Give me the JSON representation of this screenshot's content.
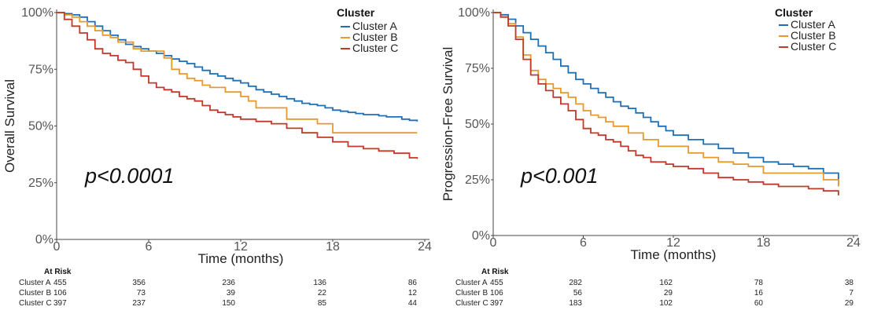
{
  "colors": {
    "A": "#1f6fb5",
    "B": "#e69a2e",
    "C": "#c0392b",
    "axis": "#444444"
  },
  "chart_data": [
    {
      "type": "line",
      "step": true,
      "ylabel": "Overall Survival",
      "xlabel": "Time (months)",
      "xlim": [
        0,
        24
      ],
      "ylim": [
        0,
        100
      ],
      "xticks": [
        "0",
        "6",
        "12",
        "18",
        "24"
      ],
      "xtick_values": [
        0,
        6,
        12,
        18,
        24
      ],
      "yticks": [
        "0%",
        "25%",
        "50%",
        "75%",
        "100%"
      ],
      "ytick_values": [
        0,
        25,
        50,
        75,
        100
      ],
      "legend_title": "Cluster",
      "legend_position": "top-right",
      "annotation": "p<0.0001",
      "series": [
        {
          "name": "Cluster A",
          "key": "A",
          "x": [
            0,
            0.5,
            1,
            1.5,
            2,
            2.5,
            3,
            3.5,
            4,
            4.5,
            5,
            5.5,
            6,
            6.5,
            7,
            7.5,
            8,
            8.5,
            9,
            9.5,
            10,
            10.5,
            11,
            11.5,
            12,
            12.5,
            13,
            13.5,
            14,
            14.5,
            15,
            15.5,
            16,
            16.5,
            17,
            17.5,
            18,
            18.5,
            19,
            19.5,
            20,
            20.5,
            21,
            21.5,
            22,
            22.5,
            23,
            23.5
          ],
          "y": [
            100,
            99.5,
            99,
            98,
            96,
            94,
            92,
            90,
            88,
            86,
            85,
            84,
            83,
            82,
            81,
            79.5,
            78.5,
            77.5,
            76,
            74.5,
            73,
            72,
            71,
            70,
            69,
            67.5,
            66,
            65,
            64,
            63,
            62,
            61,
            60,
            59.5,
            59,
            58,
            57,
            56.5,
            56,
            55.5,
            55,
            55,
            54.5,
            54,
            54,
            53,
            52.5,
            52
          ]
        },
        {
          "name": "Cluster B",
          "key": "B",
          "x": [
            0,
            0.5,
            1,
            1.5,
            2,
            2.5,
            3,
            3.5,
            4,
            5,
            5.5,
            7,
            7.5,
            8,
            8.5,
            9,
            9.5,
            10,
            11,
            12,
            12.5,
            13,
            15,
            17,
            18,
            19,
            20,
            21,
            22,
            23.5
          ],
          "y": [
            100,
            99,
            98,
            96,
            94,
            92,
            90,
            89,
            87,
            84,
            83,
            80,
            75,
            73,
            71,
            70,
            68,
            67,
            65,
            63,
            61,
            58,
            53,
            51,
            47,
            47,
            47,
            47,
            47,
            47
          ]
        },
        {
          "name": "Cluster C",
          "key": "C",
          "x": [
            0,
            0.5,
            1,
            1.5,
            2,
            2.5,
            3,
            3.5,
            4,
            4.5,
            5,
            5.5,
            6,
            6.5,
            7,
            7.5,
            8,
            8.5,
            9,
            9.5,
            10,
            10.5,
            11,
            11.5,
            12,
            13,
            14,
            15,
            16,
            17,
            18,
            19,
            20,
            21,
            22,
            23,
            23.5
          ],
          "y": [
            100,
            97,
            94,
            91,
            88,
            84,
            82,
            81,
            79,
            78,
            75,
            72,
            69,
            67,
            66,
            65,
            63,
            62,
            61,
            59,
            57,
            56,
            55,
            54,
            53,
            52,
            51,
            49,
            47,
            45,
            43,
            41,
            40,
            39,
            38,
            36,
            35.5
          ]
        }
      ],
      "at_risk": {
        "title": "At Risk",
        "rows": [
          {
            "label": "Cluster A",
            "values": [
              "455",
              "356",
              "236",
              "136",
              "86"
            ]
          },
          {
            "label": "Cluster B",
            "values": [
              "106",
              "73",
              "39",
              "22",
              "12"
            ]
          },
          {
            "label": "Cluster C",
            "values": [
              "397",
              "237",
              "150",
              "85",
              "44"
            ]
          }
        ]
      }
    },
    {
      "type": "line",
      "step": true,
      "ylabel": "Progression-Free Survival",
      "xlabel": "Time (months)",
      "xlim": [
        0,
        24
      ],
      "ylim": [
        0,
        100
      ],
      "xticks": [
        "0",
        "6",
        "12",
        "18",
        "24"
      ],
      "xtick_values": [
        0,
        6,
        12,
        18,
        24
      ],
      "yticks": [
        "0%",
        "25%",
        "50%",
        "75%",
        "100%"
      ],
      "ytick_values": [
        0,
        25,
        50,
        75,
        100
      ],
      "legend_title": "Cluster",
      "legend_position": "top-right",
      "annotation": "p<0.001",
      "series": [
        {
          "name": "Cluster A",
          "key": "A",
          "x": [
            0,
            0.5,
            1,
            1.5,
            2,
            2.5,
            3,
            3.5,
            4,
            4.5,
            5,
            5.5,
            6,
            6.5,
            7,
            7.5,
            8,
            8.5,
            9,
            9.5,
            10,
            10.5,
            11,
            11.5,
            12,
            13,
            14,
            15,
            16,
            17,
            18,
            19,
            20,
            21,
            22,
            23
          ],
          "y": [
            100,
            99,
            97,
            94,
            91,
            88,
            85,
            82,
            79,
            76,
            73,
            70,
            68,
            66,
            64,
            62,
            60,
            58,
            57,
            55,
            53,
            51,
            49,
            47,
            45,
            43,
            41,
            39,
            37,
            35,
            33,
            32,
            31,
            30,
            28,
            23
          ]
        },
        {
          "name": "Cluster B",
          "key": "B",
          "x": [
            0,
            0.5,
            1,
            1.5,
            2,
            2.5,
            3,
            3.5,
            4,
            4.5,
            5,
            5.5,
            6,
            6.5,
            7,
            7.5,
            8,
            9,
            10,
            11,
            12,
            13,
            14,
            15,
            16,
            17,
            18,
            19,
            20,
            21,
            22,
            23
          ],
          "y": [
            100,
            98,
            95,
            89,
            81,
            74,
            70,
            68,
            66,
            64,
            62,
            59,
            56,
            54,
            53,
            51,
            49,
            46,
            43,
            40,
            40,
            37,
            35,
            33,
            32,
            31,
            28,
            28,
            28,
            28,
            25,
            22
          ]
        },
        {
          "name": "Cluster C",
          "key": "C",
          "x": [
            0,
            0.5,
            1,
            1.5,
            2,
            2.5,
            3,
            3.5,
            4,
            4.5,
            5,
            5.5,
            6,
            6.5,
            7,
            7.5,
            8,
            8.5,
            9,
            9.5,
            10,
            10.5,
            11,
            11.5,
            12,
            13,
            14,
            15,
            16,
            17,
            18,
            19,
            20,
            21,
            22,
            23
          ],
          "y": [
            100,
            98,
            94,
            88,
            79,
            72,
            68,
            65,
            62,
            59,
            56,
            52,
            48,
            46,
            45,
            43,
            42,
            40,
            38,
            36,
            35,
            33,
            33,
            32,
            31,
            30,
            28,
            26,
            25,
            24,
            23,
            22,
            22,
            21,
            20,
            18
          ]
        }
      ],
      "at_risk": {
        "title": "At Risk",
        "rows": [
          {
            "label": "Cluster A",
            "values": [
              "455",
              "282",
              "162",
              "78",
              "38"
            ]
          },
          {
            "label": "Cluster B",
            "values": [
              "106",
              "56",
              "29",
              "16",
              "7"
            ]
          },
          {
            "label": "Cluster C",
            "values": [
              "397",
              "183",
              "102",
              "60",
              "29"
            ]
          }
        ]
      }
    }
  ]
}
